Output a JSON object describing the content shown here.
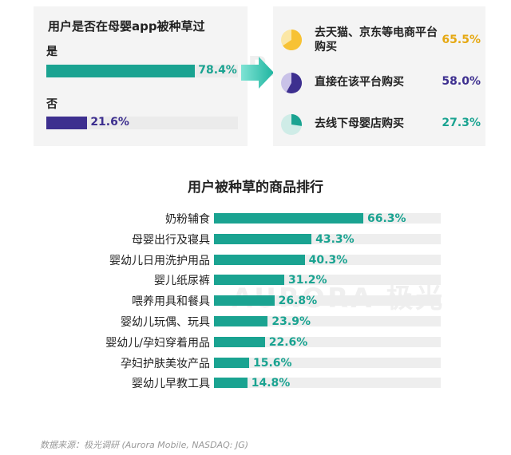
{
  "colors": {
    "teal": "#1aa391",
    "purple": "#3d2f8f",
    "gold": "#e5a812",
    "yellow": "#f7c235",
    "light_teal": "#cfece7",
    "light_purple": "#c9c2e8",
    "light_yellow": "#fbe7a6"
  },
  "watermark": "AURORA 极光",
  "source": "数据来源：极光调研 (Aurora Mobile, NASDAQ: JG)",
  "chart_data": [
    {
      "type": "bar",
      "orientation": "horizontal",
      "title": "用户是否在母婴app被种草过",
      "categories": [
        "是",
        "否"
      ],
      "values": [
        78.4,
        21.6
      ],
      "value_labels": [
        "78.4%",
        "21.6%"
      ],
      "unit": "%",
      "xlim": [
        0,
        100
      ]
    },
    {
      "type": "bar",
      "title": "",
      "categories": [
        "去天猫、京东等电商平台购买",
        "直接在该平台购买",
        "去线下母婴店购买"
      ],
      "values": [
        65.5,
        58.0,
        27.3
      ],
      "value_labels": [
        "65.5%",
        "58.0%",
        "27.3%"
      ],
      "unit": "%",
      "icons": [
        "pie-icon-yellow",
        "pie-icon-purple",
        "pie-icon-teal"
      ]
    },
    {
      "type": "bar",
      "orientation": "horizontal",
      "title": "用户被种草的商品排行",
      "categories": [
        "奶粉辅食",
        "母婴出行及寝具",
        "婴幼儿日用洗护用品",
        "婴儿纸尿裤",
        "喂养用具和餐具",
        "婴幼儿玩偶、玩具",
        "婴幼儿/孕妇穿着用品",
        "孕妇护肤美妆产品",
        "婴幼儿早教工具"
      ],
      "values": [
        66.3,
        43.3,
        40.3,
        31.2,
        26.8,
        23.9,
        22.6,
        15.6,
        14.8
      ],
      "value_labels": [
        "66.3%",
        "43.3%",
        "40.3%",
        "31.2%",
        "26.8%",
        "23.9%",
        "22.6%",
        "15.6%",
        "14.8%"
      ],
      "unit": "%",
      "xlim": [
        0,
        100
      ]
    }
  ]
}
